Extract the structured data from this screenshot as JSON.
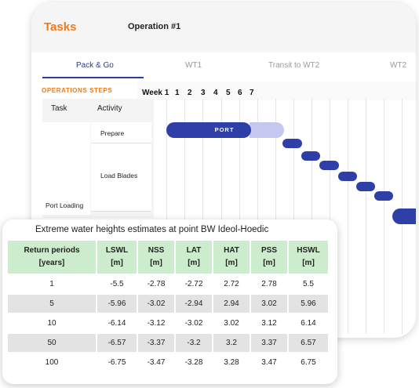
{
  "app": {
    "title": "Tasks",
    "operation": "Operation #1"
  },
  "tabs": [
    "Pack & Go",
    "WT1",
    "Transit to WT2",
    "WT2"
  ],
  "operations_label": "OPERATIONS STEPS",
  "weeks": {
    "label": "Week 1",
    "numbers": [
      "1",
      "2",
      "3",
      "4",
      "5",
      "6",
      "7"
    ]
  },
  "columns": {
    "task": "Task",
    "activity": "Activity"
  },
  "activities": [
    "Prepare",
    "Load Blades"
  ],
  "task_name": "Port Loading",
  "gantt": {
    "port_label": "PORT"
  },
  "table": {
    "title": "Extreme water heights estimates at point BW Ideol-Hoedic",
    "headers": [
      {
        "name": "Return periods",
        "unit": "[years]"
      },
      {
        "name": "LSWL",
        "unit": "[m]"
      },
      {
        "name": "NSS",
        "unit": "[m]"
      },
      {
        "name": "LAT",
        "unit": "[m]"
      },
      {
        "name": "HAT",
        "unit": "[m]"
      },
      {
        "name": "PSS",
        "unit": "[m]"
      },
      {
        "name": "HSWL",
        "unit": "[m]"
      }
    ],
    "rows": [
      [
        "1",
        "-5.5",
        "-2.78",
        "-2.72",
        "2.72",
        "2.78",
        "5.5"
      ],
      [
        "5",
        "-5.96",
        "-3.02",
        "-2.94",
        "2.94",
        "3.02",
        "5.96"
      ],
      [
        "10",
        "-6.14",
        "-3.12",
        "-3.02",
        "3.02",
        "3.12",
        "6.14"
      ],
      [
        "50",
        "-6.57",
        "-3.37",
        "-3.2",
        "3.2",
        "3.37",
        "6.57"
      ],
      [
        "100",
        "-6.75",
        "-3.47",
        "-3.28",
        "3.28",
        "3.47",
        "6.75"
      ]
    ]
  }
}
